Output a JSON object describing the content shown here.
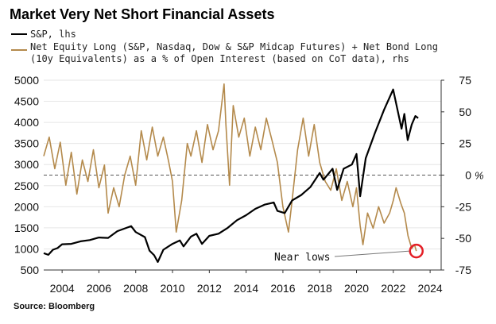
{
  "chart_data": {
    "type": "line",
    "title": "Market Very Net Short Financial Assets",
    "legend_position": "top-left",
    "source": "Source: Bloomberg",
    "x_ticks": [
      "2004",
      "2006",
      "2008",
      "2010",
      "2012",
      "2014",
      "2016",
      "2018",
      "2020",
      "2022",
      "2024"
    ],
    "x_range": [
      2003.0,
      2024.6
    ],
    "y_left": {
      "range": [
        500,
        5000
      ],
      "ticks": [
        "500",
        "1000",
        "1500",
        "2000",
        "2500",
        "3000",
        "3500",
        "4000",
        "4500",
        "5000"
      ]
    },
    "y_right": {
      "range": [
        -75,
        75
      ],
      "ticks": [
        "-75",
        "-50",
        "-25",
        "0",
        "25",
        "50",
        "75"
      ],
      "unit": "%"
    },
    "zero_line": "dashed",
    "annotation": {
      "text": "Near lows",
      "x": 2023.25,
      "y": -60
    },
    "series": [
      {
        "name": "S&P, lhs",
        "axis": "left",
        "color": "#000000",
        "points": [
          [
            2003.0,
            900
          ],
          [
            2003.25,
            860
          ],
          [
            2003.5,
            980
          ],
          [
            2003.75,
            1020
          ],
          [
            2004.0,
            1110
          ],
          [
            2004.5,
            1120
          ],
          [
            2005.0,
            1180
          ],
          [
            2005.5,
            1210
          ],
          [
            2006.0,
            1270
          ],
          [
            2006.5,
            1260
          ],
          [
            2007.0,
            1420
          ],
          [
            2007.5,
            1500
          ],
          [
            2007.75,
            1540
          ],
          [
            2008.0,
            1400
          ],
          [
            2008.5,
            1280
          ],
          [
            2008.75,
            960
          ],
          [
            2009.0,
            850
          ],
          [
            2009.2,
            690
          ],
          [
            2009.5,
            980
          ],
          [
            2010.0,
            1120
          ],
          [
            2010.4,
            1200
          ],
          [
            2010.6,
            1060
          ],
          [
            2011.0,
            1290
          ],
          [
            2011.3,
            1360
          ],
          [
            2011.6,
            1120
          ],
          [
            2012.0,
            1310
          ],
          [
            2012.5,
            1360
          ],
          [
            2013.0,
            1500
          ],
          [
            2013.5,
            1680
          ],
          [
            2014.0,
            1800
          ],
          [
            2014.5,
            1950
          ],
          [
            2015.0,
            2050
          ],
          [
            2015.5,
            2100
          ],
          [
            2015.7,
            1900
          ],
          [
            2016.1,
            1850
          ],
          [
            2016.5,
            2150
          ],
          [
            2017.0,
            2280
          ],
          [
            2017.5,
            2470
          ],
          [
            2018.0,
            2800
          ],
          [
            2018.2,
            2640
          ],
          [
            2018.7,
            2900
          ],
          [
            2018.95,
            2400
          ],
          [
            2019.3,
            2900
          ],
          [
            2019.75,
            3000
          ],
          [
            2020.0,
            3250
          ],
          [
            2020.2,
            2250
          ],
          [
            2020.5,
            3150
          ],
          [
            2021.0,
            3750
          ],
          [
            2021.5,
            4300
          ],
          [
            2021.99,
            4780
          ],
          [
            2022.45,
            3850
          ],
          [
            2022.6,
            4200
          ],
          [
            2022.78,
            3580
          ],
          [
            2023.0,
            3950
          ],
          [
            2023.2,
            4150
          ],
          [
            2023.35,
            4100
          ]
        ]
      },
      {
        "name": "Net Equity Long (S&P, Nasdaq, Dow & S&P Midcap Futures) + Net Bond Long (10y Equivalents) as a % of Open Interest (based on CoT data), rhs",
        "axis": "right",
        "color": "#b48a4c",
        "points": [
          [
            2003.0,
            15
          ],
          [
            2003.3,
            30
          ],
          [
            2003.6,
            5
          ],
          [
            2003.9,
            26
          ],
          [
            2004.2,
            -8
          ],
          [
            2004.5,
            18
          ],
          [
            2004.8,
            -15
          ],
          [
            2005.1,
            12
          ],
          [
            2005.4,
            -5
          ],
          [
            2005.7,
            20
          ],
          [
            2006.0,
            -10
          ],
          [
            2006.3,
            8
          ],
          [
            2006.5,
            -30
          ],
          [
            2006.8,
            -10
          ],
          [
            2007.1,
            -25
          ],
          [
            2007.4,
            0
          ],
          [
            2007.7,
            15
          ],
          [
            2008.0,
            -8
          ],
          [
            2008.3,
            35
          ],
          [
            2008.6,
            12
          ],
          [
            2008.9,
            38
          ],
          [
            2009.2,
            15
          ],
          [
            2009.5,
            30
          ],
          [
            2009.8,
            10
          ],
          [
            2010.0,
            -5
          ],
          [
            2010.2,
            -45
          ],
          [
            2010.5,
            -20
          ],
          [
            2010.8,
            25
          ],
          [
            2011.0,
            15
          ],
          [
            2011.3,
            35
          ],
          [
            2011.6,
            10
          ],
          [
            2011.9,
            40
          ],
          [
            2012.2,
            20
          ],
          [
            2012.5,
            35
          ],
          [
            2012.8,
            72
          ],
          [
            2012.9,
            40
          ],
          [
            2013.1,
            -8
          ],
          [
            2013.3,
            55
          ],
          [
            2013.6,
            30
          ],
          [
            2013.9,
            45
          ],
          [
            2014.2,
            15
          ],
          [
            2014.5,
            38
          ],
          [
            2014.8,
            20
          ],
          [
            2015.1,
            45
          ],
          [
            2015.4,
            28
          ],
          [
            2015.7,
            10
          ],
          [
            2016.0,
            -25
          ],
          [
            2016.3,
            -45
          ],
          [
            2016.5,
            -20
          ],
          [
            2016.8,
            20
          ],
          [
            2017.1,
            45
          ],
          [
            2017.4,
            15
          ],
          [
            2017.7,
            40
          ],
          [
            2018.0,
            10
          ],
          [
            2018.3,
            -5
          ],
          [
            2018.6,
            -12
          ],
          [
            2018.9,
            5
          ],
          [
            2019.2,
            -20
          ],
          [
            2019.5,
            -5
          ],
          [
            2019.8,
            -25
          ],
          [
            2020.0,
            -10
          ],
          [
            2020.2,
            -40
          ],
          [
            2020.35,
            -55
          ],
          [
            2020.6,
            -30
          ],
          [
            2020.9,
            -42
          ],
          [
            2021.2,
            -25
          ],
          [
            2021.5,
            -38
          ],
          [
            2021.8,
            -30
          ],
          [
            2022.0,
            -20
          ],
          [
            2022.15,
            -10
          ],
          [
            2022.4,
            -22
          ],
          [
            2022.6,
            -30
          ],
          [
            2022.8,
            -48
          ],
          [
            2023.0,
            -58
          ],
          [
            2023.15,
            -55
          ],
          [
            2023.25,
            -60
          ]
        ]
      }
    ]
  }
}
